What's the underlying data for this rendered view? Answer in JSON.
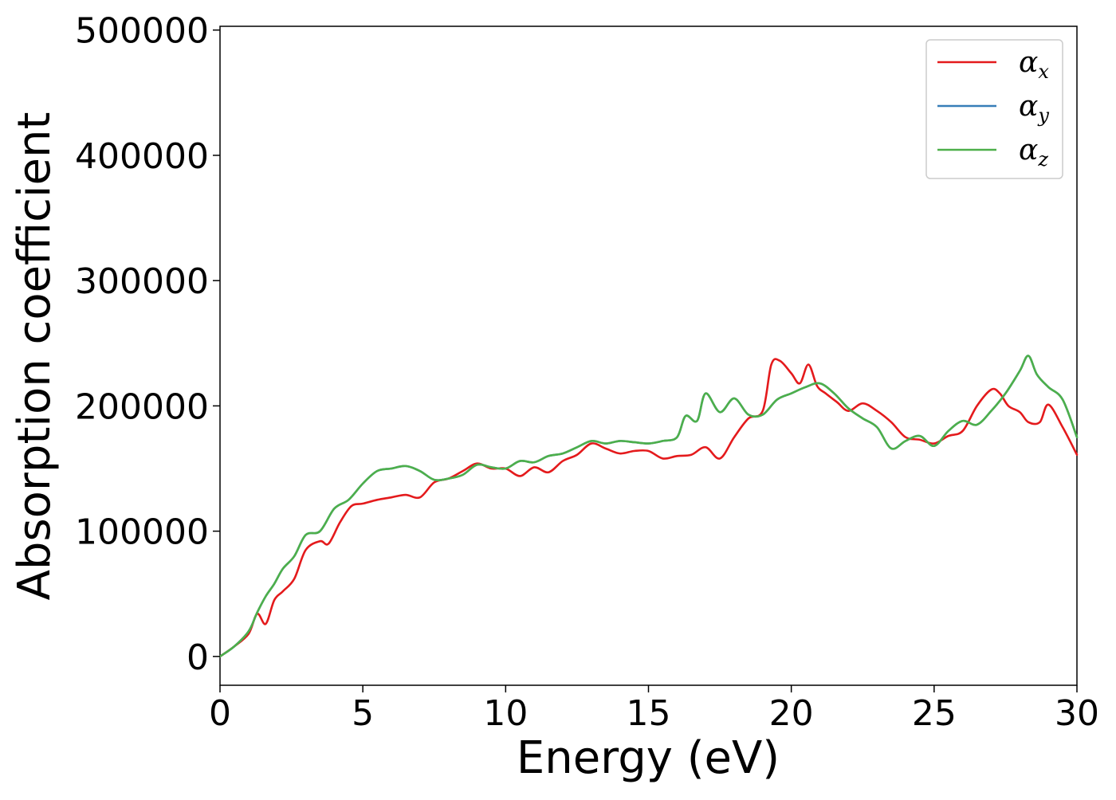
{
  "chart_data": {
    "type": "line",
    "title": "",
    "xlabel": "Energy (eV)",
    "ylabel": "Absorption coefficient",
    "xlim": [
      0,
      30
    ],
    "ylim": [
      -23000,
      503000
    ],
    "xticks": [
      0,
      5,
      10,
      15,
      20,
      25,
      30
    ],
    "xtick_labels": [
      "0",
      "5",
      "10",
      "15",
      "20",
      "25",
      "30"
    ],
    "yticks": [
      0,
      100000,
      200000,
      300000,
      400000,
      500000
    ],
    "ytick_labels": [
      "0",
      "100000",
      "200000",
      "300000",
      "400000",
      "500000"
    ],
    "grid": false,
    "legend_position": "top-right",
    "series": [
      {
        "name": "α_x",
        "label_main": "α",
        "label_sub": "x",
        "color": "#e41a1c",
        "x": [
          0,
          0.5,
          1,
          1.3,
          1.6,
          1.9,
          2.2,
          2.6,
          3,
          3.5,
          3.8,
          4.2,
          4.6,
          5,
          5.5,
          6,
          6.5,
          7,
          7.5,
          8,
          8.5,
          9,
          9.5,
          10,
          10.5,
          11,
          11.5,
          12,
          12.5,
          13,
          13.5,
          14,
          14.5,
          15,
          15.5,
          16,
          16.5,
          17,
          17.5,
          18,
          18.5,
          19,
          19.3,
          19.6,
          20,
          20.3,
          20.6,
          20.9,
          21.2,
          21.6,
          22,
          22.5,
          23,
          23.5,
          24,
          24.5,
          25,
          25.5,
          26,
          26.5,
          27,
          27.3,
          27.6,
          28,
          28.3,
          28.7,
          29,
          29.5,
          30
        ],
        "y": [
          0,
          8000,
          18000,
          34000,
          26000,
          45000,
          52000,
          62000,
          85000,
          92000,
          90000,
          107000,
          120000,
          122000,
          125000,
          127000,
          129000,
          127000,
          139000,
          142000,
          148000,
          154000,
          150000,
          150000,
          144000,
          151000,
          147000,
          156000,
          161000,
          170000,
          166000,
          162000,
          164000,
          164000,
          158000,
          160000,
          161000,
          167000,
          158000,
          175000,
          190000,
          196000,
          233000,
          236000,
          226000,
          218000,
          233000,
          216000,
          210000,
          203000,
          196000,
          202000,
          196000,
          187000,
          175000,
          173000,
          170000,
          176000,
          180000,
          200000,
          213000,
          210000,
          200000,
          195000,
          187000,
          187000,
          201000,
          183000,
          161000
        ]
      },
      {
        "name": "α_y",
        "label_main": "α",
        "label_sub": "y",
        "color": "#377eb8",
        "x": [
          0,
          0.5,
          1,
          1.3,
          1.6,
          1.9,
          2.2,
          2.6,
          3,
          3.5,
          4,
          4.5,
          5,
          5.5,
          6,
          6.5,
          7,
          7.5,
          8,
          8.5,
          9,
          9.5,
          10,
          10.5,
          11,
          11.5,
          12,
          12.5,
          13,
          13.5,
          14,
          14.5,
          15,
          15.5,
          16,
          16.3,
          16.7,
          17,
          17.5,
          18,
          18.5,
          19,
          19.5,
          20,
          20.5,
          21,
          21.5,
          22,
          22.5,
          23,
          23.5,
          24,
          24.5,
          25,
          25.5,
          26,
          26.5,
          27,
          27.5,
          28,
          28.3,
          28.6,
          29,
          29.5,
          30
        ],
        "y": [
          0,
          8000,
          20000,
          35000,
          48000,
          58000,
          70000,
          80000,
          97000,
          100000,
          118000,
          125000,
          138000,
          148000,
          150000,
          152000,
          148000,
          141000,
          142000,
          145000,
          153000,
          151000,
          150000,
          156000,
          155000,
          160000,
          162000,
          167000,
          172000,
          170000,
          172000,
          171000,
          170000,
          172000,
          175000,
          192000,
          188000,
          210000,
          195000,
          206000,
          193000,
          193000,
          205000,
          210000,
          215000,
          218000,
          210000,
          198000,
          190000,
          183000,
          166000,
          172000,
          176000,
          168000,
          180000,
          188000,
          185000,
          196000,
          210000,
          228000,
          240000,
          225000,
          215000,
          205000,
          175000
        ]
      },
      {
        "name": "α_z",
        "label_main": "α",
        "label_sub": "z",
        "color": "#4daf4a",
        "x": [
          0,
          0.5,
          1,
          1.3,
          1.6,
          1.9,
          2.2,
          2.6,
          3,
          3.5,
          4,
          4.5,
          5,
          5.5,
          6,
          6.5,
          7,
          7.5,
          8,
          8.5,
          9,
          9.5,
          10,
          10.5,
          11,
          11.5,
          12,
          12.5,
          13,
          13.5,
          14,
          14.5,
          15,
          15.5,
          16,
          16.3,
          16.7,
          17,
          17.5,
          18,
          18.5,
          19,
          19.5,
          20,
          20.5,
          21,
          21.5,
          22,
          22.5,
          23,
          23.5,
          24,
          24.5,
          25,
          25.5,
          26,
          26.5,
          27,
          27.5,
          28,
          28.3,
          28.6,
          29,
          29.5,
          30
        ],
        "y": [
          0,
          8000,
          20000,
          35000,
          48000,
          58000,
          70000,
          80000,
          97000,
          100000,
          118000,
          125000,
          138000,
          148000,
          150000,
          152000,
          148000,
          141000,
          142000,
          145000,
          153000,
          151000,
          150000,
          156000,
          155000,
          160000,
          162000,
          167000,
          172000,
          170000,
          172000,
          171000,
          170000,
          172000,
          175000,
          192000,
          188000,
          210000,
          195000,
          206000,
          193000,
          193000,
          205000,
          210000,
          215000,
          218000,
          210000,
          198000,
          190000,
          183000,
          166000,
          172000,
          176000,
          168000,
          180000,
          188000,
          185000,
          196000,
          210000,
          228000,
          240000,
          225000,
          215000,
          205000,
          175000
        ]
      }
    ]
  }
}
